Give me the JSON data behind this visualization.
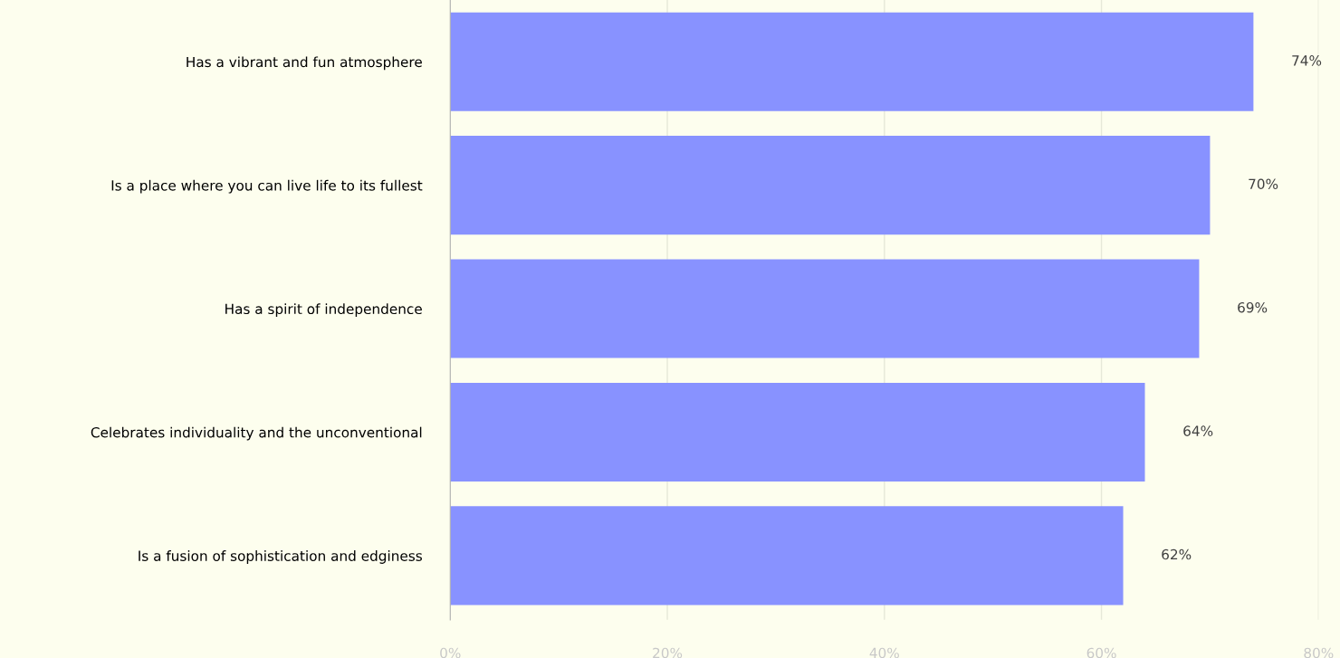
{
  "chart_data": {
    "type": "bar",
    "orientation": "horizontal",
    "categories": [
      "Has a vibrant and fun atmosphere",
      "Is a place where you can live life to its fullest",
      "Has a spirit of independence",
      "Celebrates individuality and the unconventional",
      "Is a fusion of sophistication and edginess"
    ],
    "values": [
      74,
      70,
      69,
      64,
      62
    ],
    "value_labels": [
      "74%",
      "70%",
      "69%",
      "64%",
      "62%"
    ],
    "color": "#8892ff",
    "xlim": [
      0,
      80
    ],
    "xticks": [
      {
        "value": 0,
        "label": "0%"
      },
      {
        "value": 20,
        "label": "20%"
      },
      {
        "value": 40,
        "label": "40%"
      },
      {
        "value": 60,
        "label": "60%"
      },
      {
        "value": 80,
        "label": "80%"
      }
    ],
    "grid": "x"
  }
}
